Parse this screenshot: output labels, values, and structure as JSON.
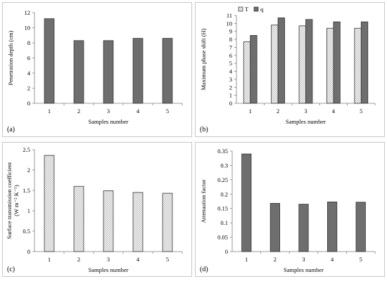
{
  "chart_data": [
    {
      "id": "a",
      "panel_label": "(a)",
      "type": "bar",
      "categories": [
        "1",
        "2",
        "3",
        "4",
        "5"
      ],
      "series": [
        {
          "values": [
            11.2,
            8.3,
            8.3,
            8.6,
            8.6
          ],
          "fill": "#6e6e6e"
        }
      ],
      "xlabel": "Samples number",
      "ylabel": "Penetration depth (cm)",
      "ylim": [
        0,
        12
      ],
      "yticks": [
        "0",
        "2",
        "4",
        "6",
        "8",
        "10",
        "12"
      ],
      "grid": false
    },
    {
      "id": "b",
      "panel_label": "(b)",
      "type": "bar",
      "categories": [
        "1",
        "2",
        "3",
        "4",
        "5"
      ],
      "series": [
        {
          "name": "T",
          "values": [
            7.7,
            9.8,
            9.7,
            9.4,
            9.4
          ],
          "fill": "hatch"
        },
        {
          "name": "q",
          "values": [
            8.5,
            10.7,
            10.5,
            10.2,
            10.2
          ],
          "fill": "#6e6e6e"
        }
      ],
      "xlabel": "Samples number",
      "ylabel": "Maximum phase shift (H)",
      "ylim": [
        0,
        11
      ],
      "yticks": [
        "0",
        "1",
        "2",
        "3",
        "4",
        "5",
        "6",
        "7",
        "8",
        "9",
        "10",
        "11"
      ],
      "legend": "top-left",
      "grid": false
    },
    {
      "id": "c",
      "panel_label": "(c)",
      "type": "bar",
      "categories": [
        "1",
        "2",
        "3",
        "4",
        "5"
      ],
      "series": [
        {
          "values": [
            2.36,
            1.6,
            1.49,
            1.45,
            1.43
          ],
          "fill": "hatch"
        }
      ],
      "xlabel": "Samples number",
      "ylabel": "Surface transmission coefficient",
      "ylabel_unit": "(W m⁻² K⁻¹)",
      "ylim": [
        0,
        2.5
      ],
      "yticks": [
        "0",
        "0.5",
        "1",
        "1.5",
        "2",
        "2.5"
      ],
      "grid": false
    },
    {
      "id": "d",
      "panel_label": "(d)",
      "type": "bar",
      "categories": [
        "1",
        "2",
        "3",
        "4",
        "5"
      ],
      "series": [
        {
          "values": [
            0.34,
            0.168,
            0.165,
            0.173,
            0.172
          ],
          "fill": "#6e6e6e"
        }
      ],
      "xlabel": "Samples number",
      "ylabel": "Attenuation factor",
      "ylim": [
        0,
        0.35
      ],
      "yticks": [
        "0",
        "0.05",
        "0.1",
        "0.15",
        "0.2",
        "0.25",
        "0.3",
        "0.35"
      ],
      "grid": false
    }
  ]
}
